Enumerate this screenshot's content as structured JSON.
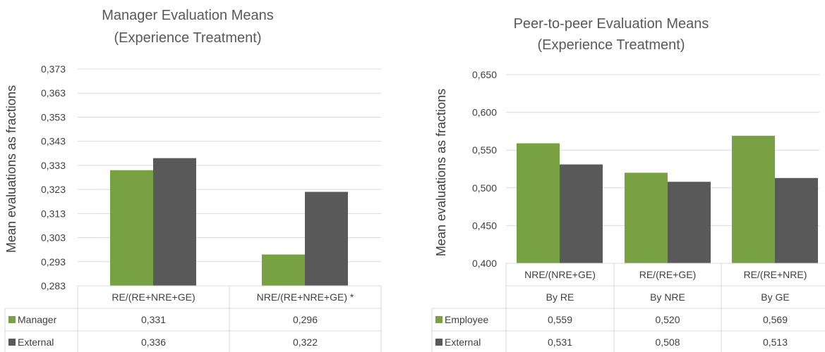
{
  "chart_data": [
    {
      "type": "bar",
      "title_lines": [
        "Manager Evaluation Means",
        "(Experience Treatment)"
      ],
      "ylabel": "Mean evaluations as fractions",
      "xlabel": "",
      "ylim": [
        0.283,
        0.373
      ],
      "yticks": [
        "0,373",
        "0,363",
        "0,353",
        "0,343",
        "0,333",
        "0,323",
        "0,313",
        "0,303",
        "0,293",
        "0,283"
      ],
      "categories": [
        {
          "line1": "RE/(RE+NRE+GE)"
        },
        {
          "line1": "NRE/(RE+NRE+GE) *"
        }
      ],
      "series": [
        {
          "name": "Manager",
          "color": "#77a143",
          "values": [
            0.331,
            0.296
          ],
          "labels": [
            "0,331",
            "0,296"
          ]
        },
        {
          "name": "External",
          "color": "#595959",
          "values": [
            0.336,
            0.322
          ],
          "labels": [
            "0,336",
            "0,322"
          ]
        }
      ],
      "grid": true,
      "legend": "data-table"
    },
    {
      "type": "bar",
      "title_lines": [
        "Peer-to-peer Evaluation Means",
        "(Experience Treatment)"
      ],
      "ylabel": "Mean evaluations as fractions",
      "xlabel": "",
      "ylim": [
        0.4,
        0.65
      ],
      "yticks": [
        "0,650",
        "0,600",
        "0,550",
        "0,500",
        "0,450",
        "0,400"
      ],
      "categories": [
        {
          "line1": "NRE/(NRE+GE)",
          "line2": "By RE"
        },
        {
          "line1": "RE/(RE+GE)",
          "line2": "By NRE"
        },
        {
          "line1": "RE/(RE+NRE)",
          "line2": "By GE"
        }
      ],
      "series": [
        {
          "name": "Employee",
          "color": "#77a143",
          "values": [
            0.559,
            0.52,
            0.569
          ],
          "labels": [
            "0,559",
            "0,520",
            "0,569"
          ]
        },
        {
          "name": "External",
          "color": "#595959",
          "values": [
            0.531,
            0.508,
            0.513
          ],
          "labels": [
            "0,531",
            "0,508",
            "0,513"
          ]
        }
      ],
      "grid": true,
      "legend": "data-table"
    }
  ]
}
